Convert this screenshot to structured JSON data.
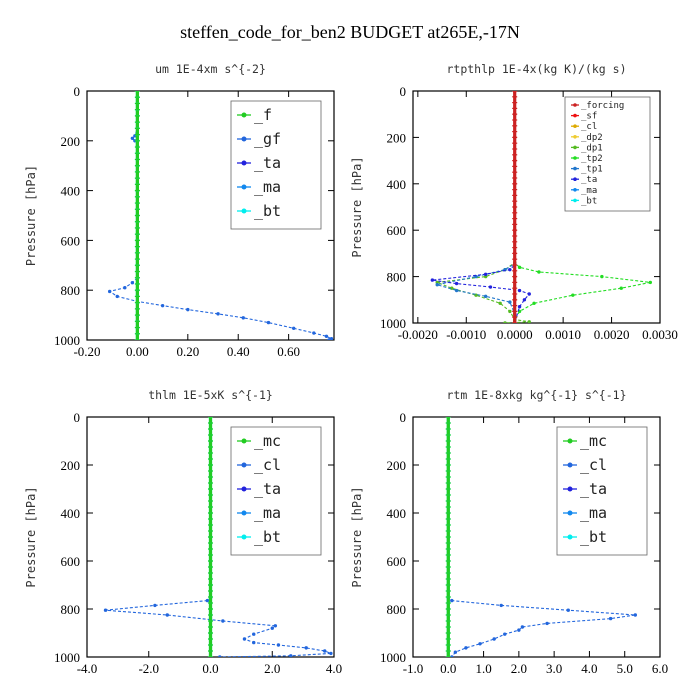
{
  "figure_title": "steffen_code_for_ben2  BUDGET at265E,-17N",
  "chart_data": [
    {
      "type": "line",
      "title": "um  1E-4xm s^{-2}",
      "xlabel": "",
      "ylabel": "Pressure [hPa]",
      "xlim": [
        -0.2,
        0.78
      ],
      "ylim": [
        1000,
        0
      ],
      "xticks": [
        "-0.20",
        "0.00",
        "0.20",
        "0.40",
        "0.60"
      ],
      "xtick_values": [
        -0.2,
        0,
        0.2,
        0.4,
        0.6
      ],
      "yticks": [
        "0",
        "200",
        "400",
        "600",
        "800",
        "1000"
      ],
      "ytick_values": [
        0,
        200,
        400,
        600,
        800,
        1000
      ],
      "legend": [
        {
          "name": "_f",
          "color": "#22cc22"
        },
        {
          "name": "_gf",
          "color": "#2266dd"
        },
        {
          "name": "_ta",
          "color": "#2222dd"
        },
        {
          "name": "_ma",
          "color": "#1188ee"
        },
        {
          "name": "_bt",
          "color": "#00eeee"
        }
      ],
      "series": [
        {
          "name": "_gf",
          "color": "#2266dd",
          "points": [
            [
              0,
              0
            ],
            [
              0,
              150
            ],
            [
              -0.01,
              180
            ],
            [
              -0.02,
              190
            ],
            [
              -0.01,
              200
            ],
            [
              0,
              220
            ],
            [
              0,
              400
            ],
            [
              0,
              600
            ],
            [
              0,
              750
            ],
            [
              -0.02,
              770
            ],
            [
              -0.05,
              790
            ],
            [
              -0.11,
              805
            ],
            [
              -0.08,
              825
            ],
            [
              0,
              845
            ],
            [
              0.1,
              862
            ],
            [
              0.2,
              878
            ],
            [
              0.32,
              895
            ],
            [
              0.42,
              911
            ],
            [
              0.52,
              930
            ],
            [
              0.62,
              953
            ],
            [
              0.7,
              972
            ],
            [
              0.75,
              985
            ],
            [
              0.77,
              995
            ],
            [
              0.76,
              1000
            ]
          ]
        },
        {
          "name": "_bt",
          "color": "#00eeee",
          "points": [
            [
              0,
              0
            ],
            [
              0,
              100
            ],
            [
              0,
              200
            ],
            [
              0,
              300
            ],
            [
              0,
              400
            ],
            [
              0,
              500
            ],
            [
              0,
              600
            ],
            [
              0,
              700
            ],
            [
              0,
              800
            ],
            [
              0,
              900
            ],
            [
              0,
              1000
            ]
          ]
        },
        {
          "name": "_f",
          "color": "#22cc22",
          "points": [
            [
              0,
              0
            ],
            [
              0,
              100
            ],
            [
              0,
              200
            ],
            [
              0,
              300
            ],
            [
              0,
              400
            ],
            [
              0,
              500
            ],
            [
              0,
              600
            ],
            [
              0,
              700
            ],
            [
              0,
              800
            ],
            [
              0,
              900
            ],
            [
              0,
              1000
            ]
          ]
        }
      ]
    },
    {
      "type": "line",
      "title": "rtpthlp  1E-4x(kg K)/(kg s)",
      "xlabel": "",
      "ylabel": "Pressure [hPa]",
      "xlim": [
        -0.0021,
        0.003
      ],
      "ylim": [
        1000,
        0
      ],
      "xticks": [
        "-0.0020",
        "-0.0010",
        "0.0000",
        "0.0010",
        "0.0020",
        "0.0030"
      ],
      "xtick_values": [
        -0.002,
        -0.001,
        0,
        0.001,
        0.002,
        0.003
      ],
      "yticks": [
        "0",
        "200",
        "400",
        "600",
        "800",
        "1000"
      ],
      "ytick_values": [
        0,
        200,
        400,
        600,
        800,
        1000
      ],
      "legend": [
        {
          "name": "_forcing",
          "color": "#cc2222"
        },
        {
          "name": "_sf",
          "color": "#ee1111"
        },
        {
          "name": "_cl",
          "color": "#ddaa00"
        },
        {
          "name": "_dp2",
          "color": "#eecc33"
        },
        {
          "name": "_dp1",
          "color": "#55bb22"
        },
        {
          "name": "_tp2",
          "color": "#22dd22"
        },
        {
          "name": "_tp1",
          "color": "#2277cc"
        },
        {
          "name": "_ta",
          "color": "#2222dd"
        },
        {
          "name": "_ma",
          "color": "#1188ee"
        },
        {
          "name": "_bt",
          "color": "#00eeee"
        }
      ],
      "series": [
        {
          "name": "_tp2",
          "color": "#22dd22",
          "points": [
            [
              0,
              0
            ],
            [
              0,
              740
            ],
            [
              0.0001,
              760
            ],
            [
              0.0005,
              780
            ],
            [
              0.0018,
              800
            ],
            [
              0.0028,
              825
            ],
            [
              0.0022,
              850
            ],
            [
              0.0012,
              880
            ],
            [
              0.0004,
              915
            ],
            [
              0.0001,
              950
            ],
            [
              0,
              990
            ],
            [
              0,
              1000
            ]
          ]
        },
        {
          "name": "_dp1",
          "color": "#55bb22",
          "points": [
            [
              0,
              0
            ],
            [
              0,
              740
            ],
            [
              -0.0002,
              770
            ],
            [
              -0.0006,
              800
            ],
            [
              -0.0016,
              825
            ],
            [
              -0.0013,
              850
            ],
            [
              -0.0008,
              880
            ],
            [
              -0.0003,
              915
            ],
            [
              -0.0001,
              950
            ],
            [
              0,
              985
            ],
            [
              0.0003,
              995
            ],
            [
              -0.0002,
              1000
            ]
          ]
        },
        {
          "name": "_tp1",
          "color": "#2277cc",
          "points": [
            [
              0,
              0
            ],
            [
              0,
              745
            ],
            [
              -0.0002,
              770
            ],
            [
              -0.0008,
              800
            ],
            [
              -0.0016,
              835
            ],
            [
              -0.0012,
              860
            ],
            [
              -0.0006,
              885
            ],
            [
              -0.0001,
              910
            ],
            [
              0,
              960
            ],
            [
              0,
              1000
            ]
          ]
        },
        {
          "name": "_ta",
          "color": "#2222dd",
          "points": [
            [
              0,
              0
            ],
            [
              0,
              750
            ],
            [
              -0.0001,
              770
            ],
            [
              -0.0006,
              790
            ],
            [
              -0.0017,
              815
            ],
            [
              -0.0012,
              830
            ],
            [
              -0.0005,
              845
            ],
            [
              0.0001,
              860
            ],
            [
              0.0003,
              875
            ],
            [
              0.0002,
              900
            ],
            [
              0.0001,
              930
            ],
            [
              0,
              1000
            ]
          ]
        },
        {
          "name": "_forcing",
          "color": "#cc2222",
          "points": [
            [
              0,
              0
            ],
            [
              0,
              100
            ],
            [
              0,
              200
            ],
            [
              0,
              300
            ],
            [
              0,
              400
            ],
            [
              0,
              500
            ],
            [
              0,
              600
            ],
            [
              0,
              700
            ],
            [
              0,
              800
            ],
            [
              0,
              900
            ],
            [
              0,
              1000
            ]
          ]
        }
      ]
    },
    {
      "type": "line",
      "title": "thlm  1E-5xK s^{-1}",
      "xlabel": "",
      "ylabel": "Pressure [hPa]",
      "xlim": [
        -4.0,
        4.0
      ],
      "ylim": [
        1000,
        0
      ],
      "xticks": [
        "-4.0",
        "-2.0",
        "0.0",
        "2.0",
        "4.0"
      ],
      "xtick_values": [
        -4,
        -2,
        0,
        2,
        4
      ],
      "yticks": [
        "0",
        "200",
        "400",
        "600",
        "800",
        "1000"
      ],
      "ytick_values": [
        0,
        200,
        400,
        600,
        800,
        1000
      ],
      "legend": [
        {
          "name": "_mc",
          "color": "#22cc22"
        },
        {
          "name": "_cl",
          "color": "#2266dd"
        },
        {
          "name": "_ta",
          "color": "#2222dd"
        },
        {
          "name": "_ma",
          "color": "#1188ee"
        },
        {
          "name": "_bt",
          "color": "#00eeee"
        }
      ],
      "series": [
        {
          "name": "_cl",
          "color": "#2266dd",
          "points": [
            [
              0,
              0
            ],
            [
              0,
              100
            ],
            [
              0,
              300
            ],
            [
              0,
              500
            ],
            [
              0,
              700
            ],
            [
              0,
              755
            ],
            [
              -0.1,
              765
            ],
            [
              -1.8,
              785
            ],
            [
              -3.4,
              805
            ],
            [
              -1.4,
              825
            ],
            [
              0.4,
              850
            ],
            [
              2.1,
              870
            ],
            [
              2.0,
              880
            ],
            [
              1.4,
              905
            ],
            [
              1.1,
              925
            ],
            [
              1.4,
              940
            ],
            [
              2.2,
              950
            ],
            [
              3.1,
              962
            ],
            [
              3.7,
              975
            ],
            [
              3.9,
              985
            ],
            [
              2.6,
              995
            ],
            [
              0.3,
              1000
            ]
          ]
        },
        {
          "name": "_bt",
          "color": "#00eeee",
          "points": [
            [
              0,
              0
            ],
            [
              0,
              100
            ],
            [
              0,
              200
            ],
            [
              0,
              300
            ],
            [
              0,
              400
            ],
            [
              0,
              500
            ],
            [
              0,
              600
            ],
            [
              0,
              700
            ],
            [
              0,
              800
            ],
            [
              0,
              900
            ],
            [
              0,
              1000
            ]
          ]
        },
        {
          "name": "_mc",
          "color": "#22cc22",
          "points": [
            [
              0,
              0
            ],
            [
              0,
              100
            ],
            [
              0,
              200
            ],
            [
              0,
              300
            ],
            [
              0,
              400
            ],
            [
              0,
              500
            ],
            [
              0,
              600
            ],
            [
              0,
              700
            ],
            [
              0,
              800
            ],
            [
              0,
              900
            ],
            [
              0,
              1000
            ]
          ]
        }
      ]
    },
    {
      "type": "line",
      "title": "rtm  1E-8xkg kg^{-1} s^{-1}",
      "xlabel": "",
      "ylabel": "Pressure [hPa]",
      "xlim": [
        -1.0,
        6.0
      ],
      "ylim": [
        1000,
        0
      ],
      "xticks": [
        "-1.0",
        "0.0",
        "1.0",
        "2.0",
        "3.0",
        "4.0",
        "5.0",
        "6.0"
      ],
      "xtick_values": [
        -1,
        0,
        1,
        2,
        3,
        4,
        5,
        6
      ],
      "yticks": [
        "0",
        "200",
        "400",
        "600",
        "800",
        "1000"
      ],
      "ytick_values": [
        0,
        200,
        400,
        600,
        800,
        1000
      ],
      "legend": [
        {
          "name": "_mc",
          "color": "#22cc22"
        },
        {
          "name": "_cl",
          "color": "#2266dd"
        },
        {
          "name": "_ta",
          "color": "#2222dd"
        },
        {
          "name": "_ma",
          "color": "#1188ee"
        },
        {
          "name": "_bt",
          "color": "#00eeee"
        }
      ],
      "series": [
        {
          "name": "_cl",
          "color": "#2266dd",
          "points": [
            [
              0,
              0
            ],
            [
              0,
              100
            ],
            [
              0,
              300
            ],
            [
              0,
              500
            ],
            [
              0,
              700
            ],
            [
              0,
              755
            ],
            [
              0.1,
              765
            ],
            [
              1.5,
              785
            ],
            [
              3.4,
              805
            ],
            [
              5.3,
              825
            ],
            [
              4.6,
              840
            ],
            [
              2.8,
              860
            ],
            [
              2.1,
              875
            ],
            [
              2.0,
              888
            ],
            [
              1.6,
              905
            ],
            [
              1.3,
              925
            ],
            [
              0.9,
              945
            ],
            [
              0.5,
              962
            ],
            [
              0.2,
              980
            ],
            [
              0.1,
              1000
            ]
          ]
        },
        {
          "name": "_bt",
          "color": "#00eeee",
          "points": [
            [
              0,
              0
            ],
            [
              0,
              100
            ],
            [
              0,
              200
            ],
            [
              0,
              300
            ],
            [
              0,
              400
            ],
            [
              0,
              500
            ],
            [
              0,
              600
            ],
            [
              0,
              700
            ],
            [
              0,
              800
            ],
            [
              0,
              900
            ],
            [
              0,
              1000
            ]
          ]
        },
        {
          "name": "_mc",
          "color": "#22cc22",
          "points": [
            [
              0,
              0
            ],
            [
              0,
              100
            ],
            [
              0,
              200
            ],
            [
              0,
              300
            ],
            [
              0,
              400
            ],
            [
              0,
              500
            ],
            [
              0,
              600
            ],
            [
              0,
              700
            ],
            [
              0,
              800
            ],
            [
              0,
              900
            ],
            [
              0,
              1000
            ]
          ]
        }
      ]
    }
  ]
}
